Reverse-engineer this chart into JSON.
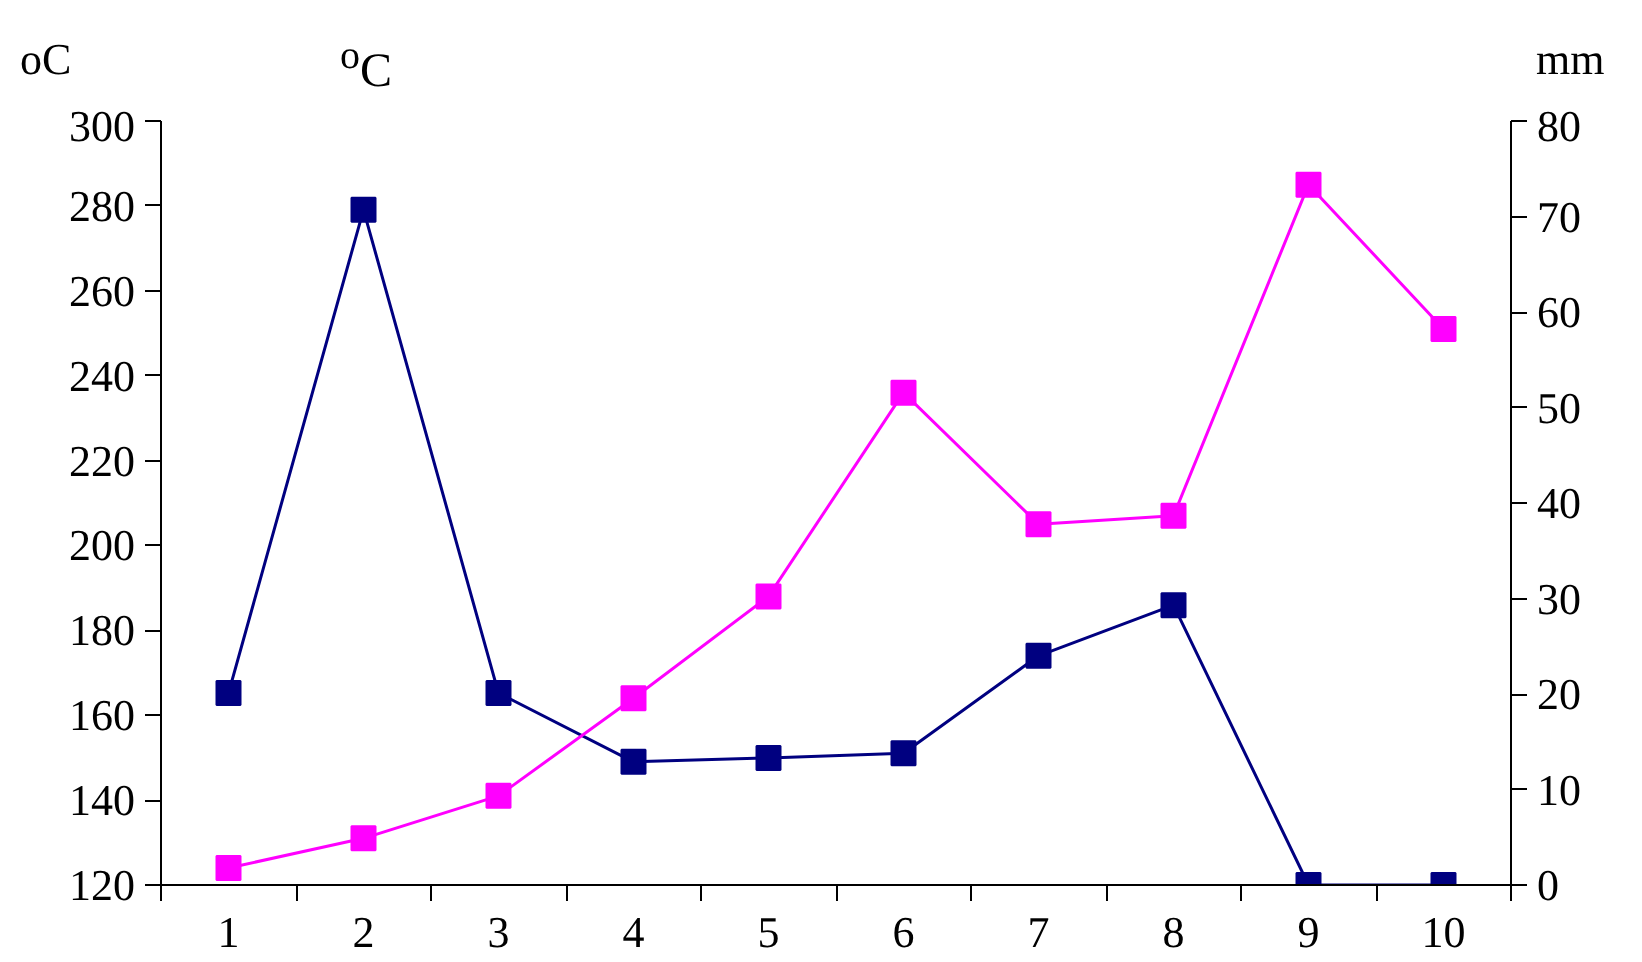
{
  "chart_data": {
    "type": "line",
    "ylabel": "oC",
    "y2label": "mm",
    "annotations": [
      "$^{o}$C"
    ],
    "categories": [
      "1",
      "2",
      "3",
      "4",
      "5",
      "6",
      "7",
      "8",
      "9",
      "10"
    ],
    "series": [
      {
        "color": "#000080",
        "axis": "y2",
        "values": [
          20.1,
          70.7,
          20.1,
          12.9,
          13.3,
          13.8,
          24,
          29.3,
          0,
          0
        ]
      },
      {
        "color": "#ff00ff",
        "values": [
          124,
          131,
          141,
          164,
          188,
          236,
          205,
          207,
          285,
          251
        ]
      }
    ],
    "ylim": [
      120,
      300
    ],
    "yticks": [
      120,
      140,
      160,
      180,
      200,
      220,
      240,
      260,
      280,
      300
    ],
    "y2lim": [
      0,
      80
    ],
    "y2ticks": [
      0,
      10,
      20,
      30,
      40,
      50,
      60,
      70,
      80
    ],
    "marker": "square",
    "grid": false
  }
}
